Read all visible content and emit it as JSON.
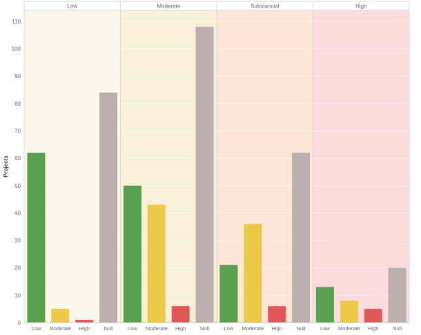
{
  "chart_data": {
    "type": "bar",
    "ylabel": "Projects",
    "ylim": [
      0,
      114
    ],
    "yticks": [
      0,
      10,
      20,
      30,
      40,
      50,
      60,
      70,
      80,
      90,
      100,
      110
    ],
    "grid": true,
    "panels": [
      {
        "label": "Low",
        "background": "#fbf7e9",
        "categories": [
          "Low",
          "Moderate",
          "High",
          "Null"
        ],
        "values": [
          62,
          5,
          1,
          84
        ]
      },
      {
        "label": "Moderate",
        "background": "#f6f0d7",
        "categories": [
          "Low",
          "Moderate",
          "High",
          "Null"
        ],
        "values": [
          50,
          43,
          6,
          108
        ]
      },
      {
        "label": "Substancial",
        "background": "#fde6d6",
        "categories": [
          "Low",
          "Moderate",
          "High",
          "Null"
        ],
        "values": [
          21,
          36,
          6,
          62
        ]
      },
      {
        "label": "High",
        "background": "#fddbdd",
        "categories": [
          "Low",
          "Moderate",
          "High",
          "Null"
        ],
        "values": [
          13,
          8,
          5,
          20
        ]
      }
    ],
    "category_colors": {
      "Low": "#59a14f",
      "Moderate": "#edc948",
      "High": "#e15759",
      "Null": "#bab0ac"
    }
  }
}
